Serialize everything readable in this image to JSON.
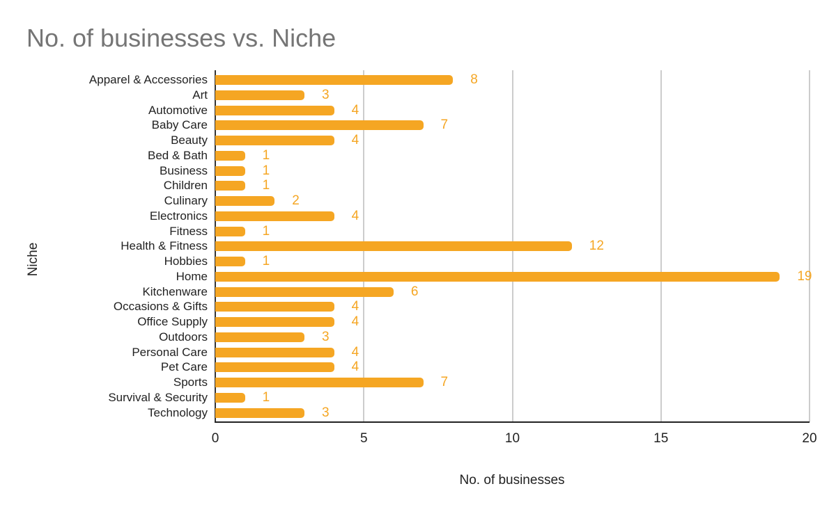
{
  "chart_data": {
    "type": "bar",
    "orientation": "horizontal",
    "title": "No. of businesses vs. Niche",
    "xlabel": "No. of businesses",
    "ylabel": "Niche",
    "xlim": [
      0,
      20
    ],
    "xticks": [
      0,
      5,
      10,
      15,
      20
    ],
    "grid": true,
    "legend": null,
    "bar_color": "#f5a623",
    "data_labels": true,
    "categories": [
      "Apparel & Accessories",
      "Art",
      "Automotive",
      "Baby Care",
      "Beauty",
      "Bed & Bath",
      "Business",
      "Children",
      "Culinary",
      "Electronics",
      "Fitness",
      "Health & Fitness",
      "Hobbies",
      "Home",
      "Kitchenware",
      "Occasions & Gifts",
      "Office Supply",
      "Outdoors",
      "Personal Care",
      "Pet Care",
      "Sports",
      "Survival & Security",
      "Technology"
    ],
    "values": [
      8,
      3,
      4,
      7,
      4,
      1,
      1,
      1,
      2,
      4,
      1,
      12,
      1,
      19,
      6,
      4,
      4,
      3,
      4,
      4,
      7,
      1,
      3
    ]
  }
}
